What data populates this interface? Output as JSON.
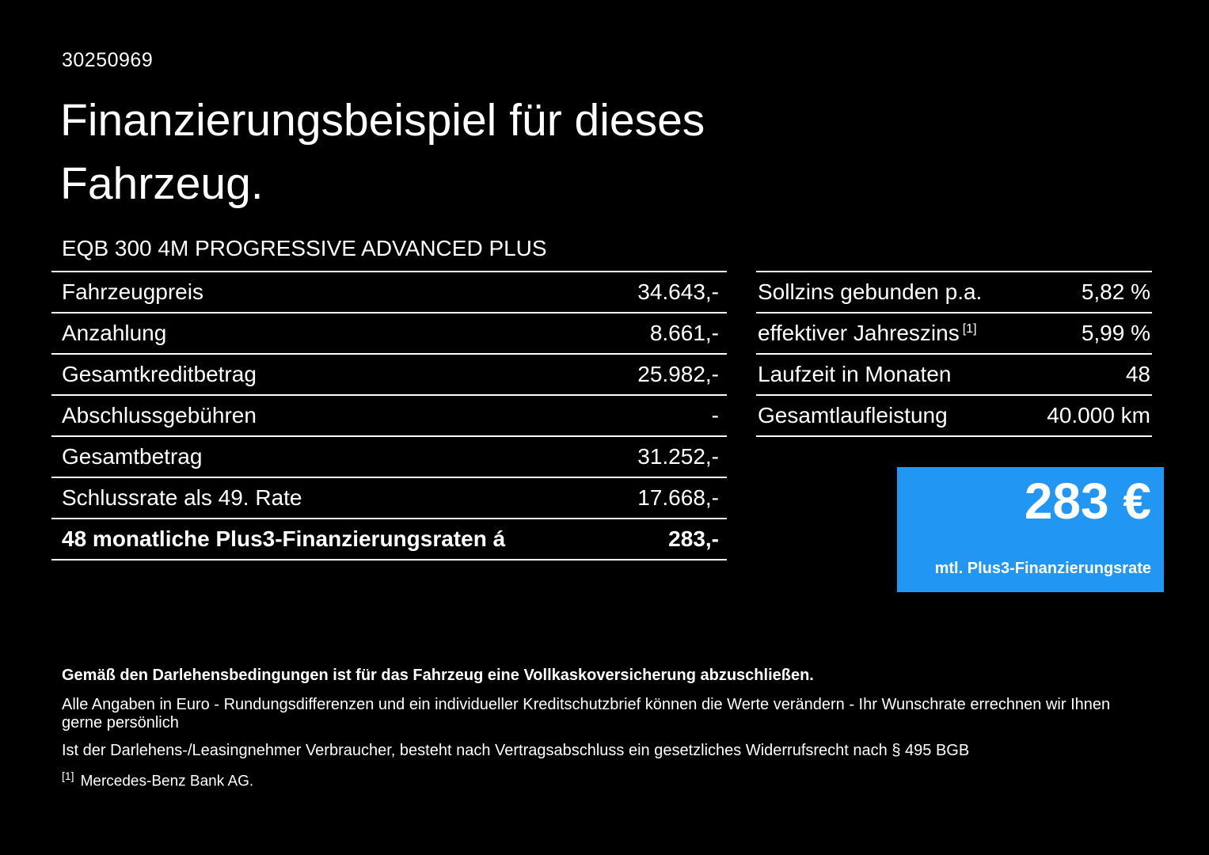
{
  "meta": {
    "id": "30250969"
  },
  "header": {
    "title_line1": "Finanzierungsbeispiel für dieses",
    "title_line2": "Fahrzeug.",
    "vehicle": "EQB 300 4M PROGRESSIVE ADVANCED PLUS"
  },
  "left_table": {
    "rows": [
      {
        "label": "Fahrzeugpreis",
        "value": "34.643,-"
      },
      {
        "label": "Anzahlung",
        "value": "8.661,-"
      },
      {
        "label": "Gesamtkreditbetrag",
        "value": "25.982,-"
      },
      {
        "label": "Abschlussgebühren",
        "value": "-"
      },
      {
        "label": "Gesamtbetrag",
        "value": "31.252,-"
      },
      {
        "label": "Schlussrate als 49. Rate",
        "value": "17.668,-"
      },
      {
        "label": "48 monatliche Plus3-Finanzierungsraten á",
        "value": "283,-"
      }
    ]
  },
  "right_table": {
    "rows": [
      {
        "label": "Sollzins gebunden p.a.",
        "value": "5,82 %"
      },
      {
        "label": "effektiver Jahreszins",
        "sup_marker": "[1]",
        "value": "5,99 %"
      },
      {
        "label": "Laufzeit in Monaten",
        "value": "48"
      },
      {
        "label": "Gesamtlaufleistung",
        "value": "40.000 km"
      }
    ]
  },
  "rate_box": {
    "amount": "283 €",
    "caption": "mtl. Plus3-Finanzierungsrate",
    "color": "#2196f3"
  },
  "footer": {
    "line_bold": "Gemäß den Darlehensbedingungen ist für das Fahrzeug eine Vollkaskoversicherung abzuschließen.",
    "line1": "Alle Angaben in Euro - Rundungsdifferenzen und ein individueller Kreditschutzbrief können die Werte verändern - Ihr Wunschrate errechnen wir Ihnen gerne persönlich",
    "line2": "Ist der Darlehens-/Leasingnehmer Verbraucher, besteht nach Vertragsabschluss ein gesetzliches Widerrufsrecht nach § 495 BGB",
    "footnote_marker": "[1]",
    "footnote_text": "Mercedes-Benz Bank AG."
  }
}
